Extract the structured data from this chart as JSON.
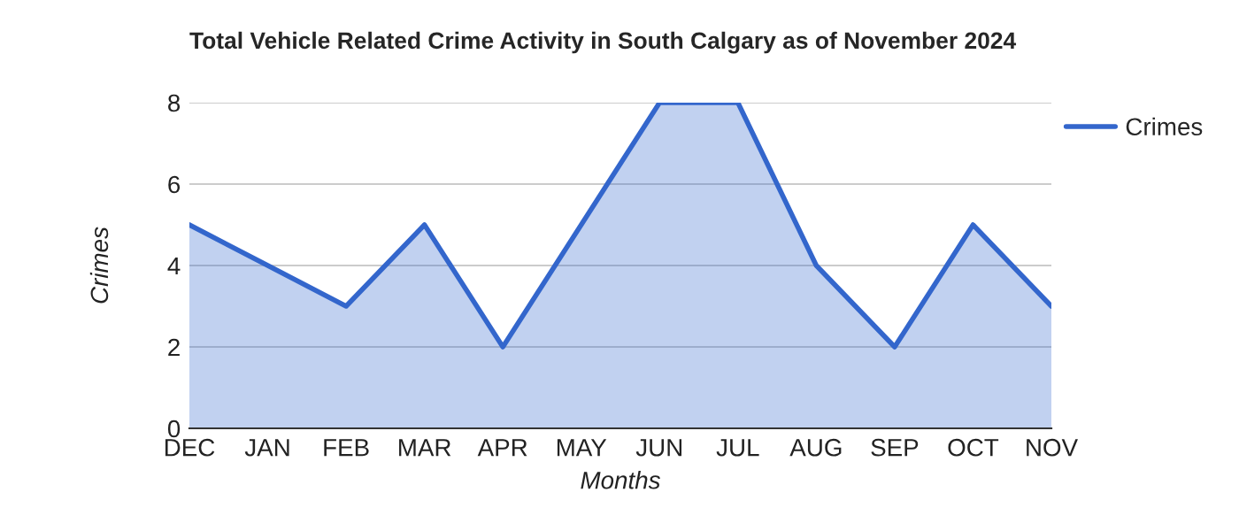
{
  "chart_data": {
    "type": "area",
    "title": "Total Vehicle Related Crime Activity in South Calgary as of November 2024",
    "xlabel": "Months",
    "ylabel": "Crimes",
    "categories": [
      "DEC",
      "JAN",
      "FEB",
      "MAR",
      "APR",
      "MAY",
      "JUN",
      "JUL",
      "AUG",
      "SEP",
      "OCT",
      "NOV"
    ],
    "series": [
      {
        "name": "Crimes",
        "color": "#3366cc",
        "values": [
          5,
          4,
          3,
          5,
          2,
          5,
          8,
          8,
          4,
          2,
          5,
          3
        ]
      }
    ],
    "ylim": [
      0,
      8
    ],
    "yticks": [
      0,
      2,
      4,
      6,
      8
    ],
    "grid": "y",
    "legend": "top right"
  }
}
